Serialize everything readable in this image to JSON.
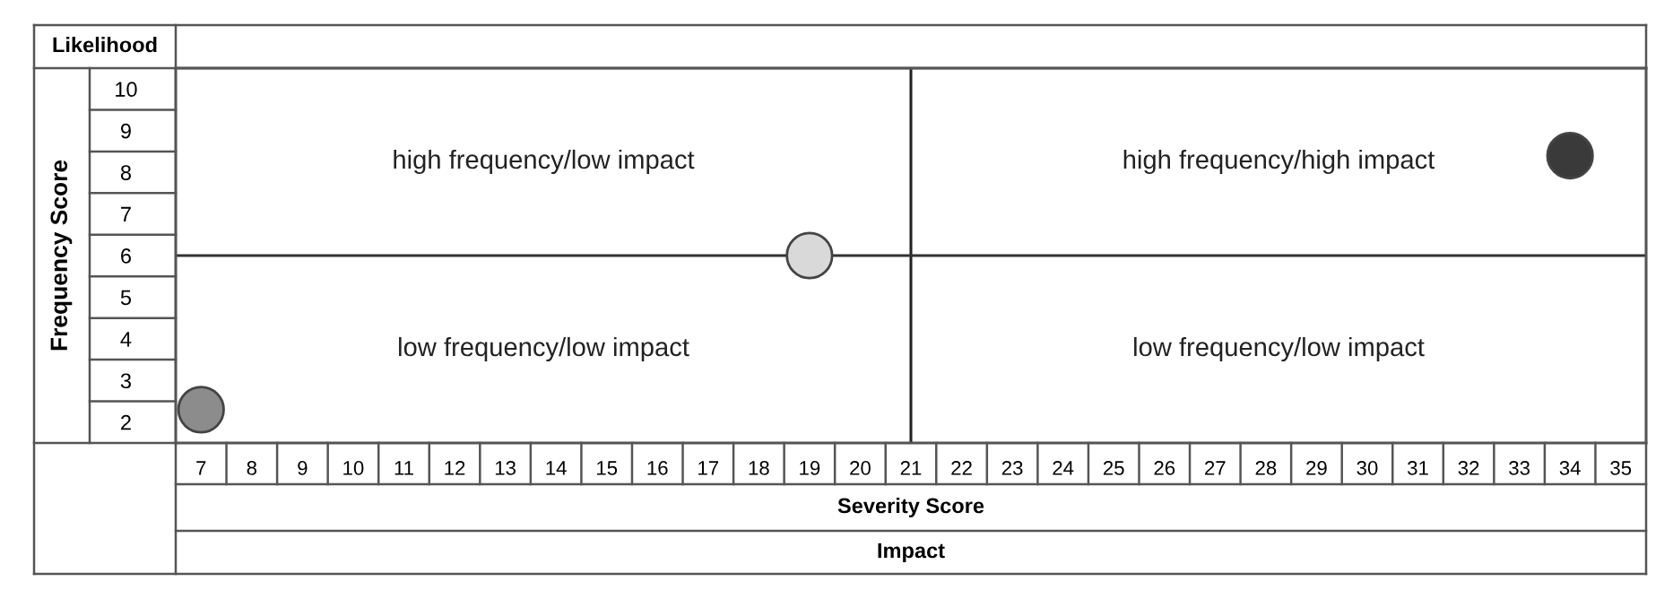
{
  "chart_data": {
    "type": "scatter",
    "xlabel": "Severity Score",
    "ylabel": "Frequency Score",
    "annotations": [
      "Likelihood",
      "Impact",
      "high frequency/low impact",
      "high frequency/high impact",
      "low frequency/low impact",
      "low frequency/low impact"
    ],
    "series": [
      {
        "x": [
          7,
          19,
          34
        ],
        "values": [
          2.3,
          6,
          8.4
        ],
        "colors": [
          "#8c8c8c",
          "#d9d9d9",
          "#3a3a3a"
        ]
      }
    ],
    "xlim": [
      6.5,
      35.5
    ],
    "ylim": [
      1.5,
      10.5
    ],
    "xticks": [
      7,
      8,
      9,
      10,
      11,
      12,
      13,
      14,
      15,
      16,
      17,
      18,
      19,
      20,
      21,
      22,
      23,
      24,
      25,
      26,
      27,
      28,
      29,
      30,
      31,
      32,
      33,
      34,
      35
    ],
    "yticks": [
      2,
      3,
      4,
      5,
      6,
      7,
      8,
      9,
      10
    ],
    "ref_lines": [
      {
        "axis": "x",
        "value": 21,
        "color": "#222222"
      },
      {
        "axis": "y",
        "value": 6,
        "color": "#333333"
      }
    ],
    "grid": false
  }
}
